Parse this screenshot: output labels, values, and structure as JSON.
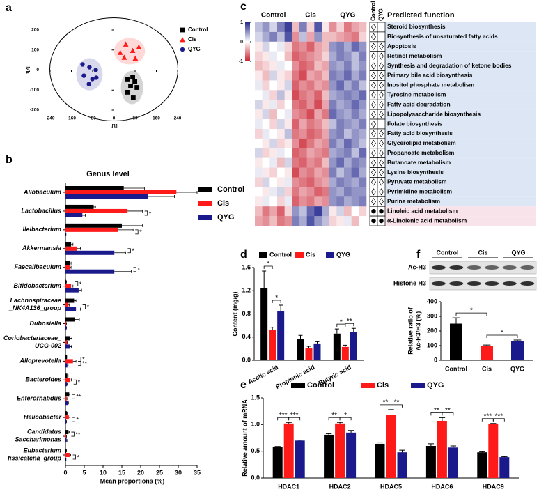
{
  "chart_data": [
    {
      "type": "scatter",
      "label": "a",
      "xlabel": "t[1]",
      "ylabel": "t[2]",
      "xlim": [
        -240,
        240
      ],
      "xticks": [
        -240,
        -160,
        -80,
        0,
        80,
        160,
        240
      ],
      "ylim": [
        -200,
        200
      ],
      "yticks": [
        -200,
        -100,
        0,
        100,
        200
      ],
      "series": [
        {
          "name": "Control",
          "color": "#000000",
          "marker": "square",
          "x": [
            52,
            71,
            79,
            63,
            50,
            73,
            87
          ],
          "y": [
            -45,
            -35,
            -56,
            -80,
            -111,
            -139,
            -87
          ]
        },
        {
          "name": "Cis",
          "color": "#ff1a1a",
          "marker": "triangle",
          "x": [
            24,
            45,
            71,
            94,
            39,
            81
          ],
          "y": [
            87,
            129,
            97,
            115,
            63,
            59
          ]
        },
        {
          "name": "QYG",
          "color": "#1a1a8c",
          "marker": "circle",
          "x": [
            -118,
            -92,
            -68,
            -113,
            -81,
            -94,
            -66
          ],
          "y": [
            28,
            14,
            0,
            -28,
            -45,
            -70,
            -38
          ]
        }
      ]
    },
    {
      "type": "hbar",
      "label": "b",
      "title": "Genus level",
      "xlabel": "Mean proportions (%)",
      "categories": [
        "Allobaculum",
        "Lactobacillus",
        "Ileibacterium",
        "Akkermansia",
        "Faecalibaculum",
        "Bifidobacterium",
        "Lachnospiraceae\n_NK4A136_group",
        "Dubosiella",
        "Coriobacteriaceae_\nUCG-002",
        "Alloprevotella",
        "Bacteroides",
        "Enterorhabdus",
        "Helicobacter",
        "Candidatus\n_Saccharimonas",
        "Eubacterium\n_fissicatena_group"
      ],
      "xlim": [
        0,
        35
      ],
      "xticks": [
        0,
        5,
        10,
        15,
        20,
        25,
        30,
        35
      ],
      "series": [
        {
          "name": "Control",
          "color": "#000000",
          "values": [
            15.5,
            7.5,
            15,
            1.5,
            1.2,
            0.2,
            2.3,
            2.5,
            1.3,
            0.4,
            0.5,
            1,
            0.4,
            0.8,
            0.2
          ],
          "errors": [
            5.5,
            0.5,
            5.5,
            0.5,
            0.3,
            0.1,
            0.5,
            1.2,
            0.4,
            0.2,
            0.2,
            0.2,
            0.1,
            0.2,
            0.1
          ]
        },
        {
          "name": "Cis",
          "color": "#ff1a1a",
          "values": [
            29.5,
            16.5,
            14,
            3,
            1.2,
            1.5,
            0.8,
            0.2,
            0.4,
            2,
            1.3,
            0.3,
            0.9,
            0.2,
            1.1
          ],
          "errors": [
            5.5,
            4,
            4,
            1,
            0.3,
            0.5,
            0.2,
            0.1,
            0.1,
            0.8,
            0.3,
            0.1,
            0.3,
            0.1,
            0.3
          ]
        },
        {
          "name": "QYG",
          "color": "#1a1a8c",
          "values": [
            22,
            4.5,
            0.1,
            13,
            13,
            3.5,
            2.8,
            0.2,
            1.3,
            0.5,
            0.4,
            0.7,
            0.2,
            0.3,
            0.1
          ],
          "errors": [
            7,
            0.8,
            0.05,
            3,
            4.5,
            0.8,
            1.2,
            0.1,
            0.3,
            0.2,
            0.1,
            0.1,
            0.1,
            0.1,
            0.05
          ]
        }
      ],
      "significance": [
        {
          "category": 1,
          "pair": [
            1,
            2
          ],
          "label": "*"
        },
        {
          "category": 2,
          "pair": [
            1,
            2
          ],
          "label": "*"
        },
        {
          "category": 3,
          "pair": [
            1,
            2
          ],
          "label": "*"
        },
        {
          "category": 4,
          "pair": [
            1,
            2
          ],
          "label": "*"
        },
        {
          "category": 5,
          "pair": [
            0,
            1
          ],
          "label": "*"
        },
        {
          "category": 6,
          "pair": [
            1,
            2
          ],
          "label": "*"
        },
        {
          "category": 9,
          "pair": [
            0,
            1
          ],
          "label": "*"
        },
        {
          "category": 9,
          "pair": [
            1,
            2
          ],
          "label": "**"
        },
        {
          "category": 10,
          "pair": [
            1,
            2
          ],
          "label": "*"
        },
        {
          "category": 11,
          "pair": [
            0,
            1
          ],
          "label": "**"
        },
        {
          "category": 12,
          "pair": [
            1,
            2
          ],
          "label": "*"
        },
        {
          "category": 13,
          "pair": [
            0,
            1
          ],
          "label": "**"
        },
        {
          "category": 14,
          "pair": [
            1,
            2
          ],
          "label": "*"
        }
      ]
    },
    {
      "type": "heatmap",
      "label": "c",
      "groups": [
        "Control",
        "Cis",
        "QYG"
      ],
      "header": "Predicted function",
      "rows": [
        "Steroid biosynthesis",
        "Biosynthesis of unsaturated fatty acids",
        "Apoptosis",
        "Retinol metabolism",
        "Synthesis and degradation of ketone bodies",
        "Primary bile acid biosynthesis",
        "Inositol phosphate metabolism",
        "Tyrosine metabolism",
        "Fatty acid degradation",
        "Lipopolysaccharide biosynthesis",
        "Folate biosynthesis",
        "Fatty acid biosynthesis",
        "Glycerolipid metabolism",
        "Propanoate metabolism",
        "Butanoate metabolism",
        "Lysine biosynthesis",
        "Pyruvate metabolism",
        "Pyrimidine metabolism",
        "Purine metabolism",
        "Linoleic acid metabolism",
        "α-Linolenic acid metabolism"
      ],
      "values": [
        [
          -0.3,
          -0.5,
          -0.2,
          -0.6,
          -0.9,
          0.3,
          -0.6,
          0.2,
          -0.8,
          0.1,
          0.5,
          0.2,
          0.6,
          0.4,
          0.3
        ],
        [
          -0.2,
          -0.4,
          -0.6,
          -0.3,
          -0.8,
          0.5,
          -0.3,
          0.4,
          -0.5,
          0.3,
          0.3,
          0.4,
          0.5,
          0.6,
          0.2
        ],
        [
          0.1,
          -0.2,
          0.0,
          -0.1,
          0.2,
          0.6,
          0.5,
          0.7,
          0.4,
          0.3,
          -0.5,
          -0.6,
          -0.4,
          -0.7,
          -0.5
        ],
        [
          0.2,
          0.1,
          -0.1,
          0.0,
          0.3,
          0.7,
          0.6,
          0.5,
          0.4,
          0.2,
          -0.4,
          -0.6,
          -0.5,
          -0.3,
          -0.6
        ],
        [
          0.3,
          0.2,
          0.1,
          -0.1,
          0.0,
          0.5,
          0.7,
          0.6,
          0.3,
          0.4,
          -0.5,
          -0.4,
          -0.6,
          -0.3,
          -0.5
        ],
        [
          0.1,
          0.3,
          -0.2,
          0.1,
          0.2,
          0.6,
          0.8,
          0.4,
          0.5,
          0.3,
          -0.6,
          -0.5,
          -0.7,
          -0.4,
          -0.6
        ],
        [
          -0.1,
          0.2,
          0.0,
          0.1,
          -0.2,
          0.7,
          0.5,
          0.6,
          0.4,
          0.5,
          -0.5,
          -0.7,
          -0.4,
          -0.6,
          -0.3
        ],
        [
          0.0,
          -0.1,
          0.2,
          -0.3,
          0.1,
          0.8,
          0.6,
          0.5,
          0.7,
          0.3,
          -0.4,
          -0.5,
          -0.6,
          -0.5,
          -0.7
        ],
        [
          -0.2,
          0.1,
          -0.1,
          0.2,
          0.0,
          0.6,
          0.7,
          0.5,
          0.8,
          0.4,
          -0.6,
          -0.4,
          -0.5,
          -0.7,
          -0.5
        ],
        [
          0.1,
          -0.2,
          0.3,
          0.0,
          -0.1,
          0.5,
          0.6,
          0.8,
          0.4,
          0.6,
          -0.7,
          -0.5,
          -0.4,
          -0.6,
          -0.4
        ],
        [
          -0.1,
          0.0,
          0.2,
          -0.2,
          0.1,
          0.7,
          0.4,
          0.6,
          0.5,
          0.3,
          -0.3,
          -0.6,
          -0.5,
          -0.4,
          -0.6
        ],
        [
          0.2,
          -0.1,
          0.0,
          0.1,
          -0.3,
          0.6,
          0.5,
          0.7,
          0.6,
          0.4,
          -0.5,
          -0.6,
          -0.3,
          -0.5,
          -0.4
        ],
        [
          0.0,
          0.1,
          -0.2,
          0.2,
          0.1,
          0.5,
          0.8,
          0.6,
          0.4,
          0.5,
          -0.6,
          -0.4,
          -0.7,
          -0.5,
          -0.3
        ],
        [
          -0.2,
          0.2,
          0.1,
          -0.1,
          0.0,
          0.7,
          0.6,
          0.4,
          0.5,
          0.6,
          -0.4,
          -0.5,
          -0.6,
          -0.3,
          -0.7
        ],
        [
          0.1,
          0.0,
          -0.1,
          0.3,
          -0.2,
          0.6,
          0.7,
          0.5,
          0.6,
          0.3,
          -0.5,
          -0.7,
          -0.4,
          -0.6,
          -0.5
        ],
        [
          -0.1,
          0.1,
          0.2,
          0.0,
          0.1,
          0.8,
          0.5,
          0.6,
          0.4,
          0.5,
          -0.6,
          -0.3,
          -0.5,
          -0.7,
          -0.4
        ],
        [
          0.2,
          -0.2,
          0.0,
          0.1,
          -0.1,
          0.5,
          0.6,
          0.7,
          0.5,
          0.4,
          -0.4,
          -0.6,
          -0.5,
          -0.4,
          -0.6
        ],
        [
          0.0,
          0.1,
          -0.1,
          -0.2,
          0.2,
          0.6,
          0.4,
          0.5,
          0.7,
          0.6,
          -0.5,
          -0.4,
          -0.6,
          -0.5,
          -0.5
        ],
        [
          0.1,
          -0.1,
          0.0,
          0.2,
          -0.1,
          0.7,
          0.5,
          0.6,
          0.4,
          0.5,
          -0.5,
          -0.6,
          -0.4,
          -0.5,
          -0.6
        ],
        [
          0.3,
          0.6,
          0.4,
          0.7,
          0.2,
          -0.5,
          -0.3,
          -0.7,
          -0.9,
          -0.4,
          0.1,
          -0.2,
          0.3,
          0.0,
          0.2
        ],
        [
          0.4,
          0.5,
          0.3,
          0.6,
          0.5,
          -0.6,
          -0.4,
          -0.8,
          -0.5,
          -0.3,
          0.2,
          0.1,
          -0.1,
          0.3,
          0.0
        ]
      ],
      "zlim": [
        -1,
        1
      ],
      "zticks": [
        1,
        0,
        -1
      ],
      "colorscale": [
        "#262a8e",
        "#ffffff",
        "#c81f2e"
      ],
      "marker_columns": [
        "Control",
        "QYG"
      ],
      "markers": [
        [
          "diamond",
          null
        ],
        [
          "diamond",
          null
        ],
        [
          "diamond",
          "diamond"
        ],
        [
          "diamond",
          "diamond"
        ],
        [
          "diamond",
          "diamond"
        ],
        [
          "diamond",
          "diamond"
        ],
        [
          "diamond",
          "diamond"
        ],
        [
          "diamond",
          "diamond"
        ],
        [
          "diamond",
          "diamond"
        ],
        [
          "diamond",
          "diamond"
        ],
        [
          "diamond",
          null
        ],
        [
          "diamond",
          "diamond"
        ],
        [
          "diamond",
          "diamond"
        ],
        [
          "diamond",
          "diamond"
        ],
        [
          "diamond",
          "diamond"
        ],
        [
          "diamond",
          "diamond"
        ],
        [
          "diamond",
          "diamond"
        ],
        [
          "diamond",
          "diamond"
        ],
        [
          "diamond",
          "diamond"
        ],
        [
          "circle",
          "circle"
        ],
        [
          "circle",
          "circle"
        ]
      ],
      "row_colors": [
        "#dce6f4",
        "#dce6f4",
        "#dce6f4",
        "#dce6f4",
        "#dce6f4",
        "#dce6f4",
        "#dce6f4",
        "#dce6f4",
        "#dce6f4",
        "#dce6f4",
        "#dce6f4",
        "#dce6f4",
        "#dce6f4",
        "#dce6f4",
        "#dce6f4",
        "#dce6f4",
        "#dce6f4",
        "#dce6f4",
        "#dce6f4",
        "#f9e3ea",
        "#f9e3ea"
      ]
    },
    {
      "type": "bar",
      "label": "d",
      "ylabel": "Content (mg/g)",
      "categories": [
        "Acetic acid",
        "Propionic acid",
        "Butyric acid"
      ],
      "ylim": [
        0,
        1.6
      ],
      "yticks": [
        {
          "value": 0,
          "label": "0.0"
        },
        0.4,
        0.8,
        1.2,
        1.6
      ],
      "series": [
        {
          "name": "Control",
          "color": "#000000",
          "values": [
            1.24,
            0.37,
            0.46
          ],
          "errors": [
            0.3,
            0.06,
            0.08
          ]
        },
        {
          "name": "Cis",
          "color": "#ff1a1a",
          "values": [
            0.52,
            0.21,
            0.23
          ],
          "errors": [
            0.05,
            0.03,
            0.03
          ]
        },
        {
          "name": "QYG",
          "color": "#1a1a8c",
          "values": [
            0.85,
            0.29,
            0.49
          ],
          "errors": [
            0.1,
            0.03,
            0.06
          ]
        }
      ],
      "significance": [
        {
          "category": 0,
          "pair": [
            0,
            1
          ],
          "label": "*"
        },
        {
          "category": 0,
          "pair": [
            1,
            2
          ],
          "label": "*"
        },
        {
          "category": 2,
          "pair": [
            0,
            1
          ],
          "label": "*"
        },
        {
          "category": 2,
          "pair": [
            1,
            2
          ],
          "label": "**"
        }
      ]
    },
    {
      "type": "bar",
      "label": "e",
      "ylabel": "Relative amount of mRNA",
      "categories": [
        "HDAC1",
        "HDAC2",
        "HDAC5",
        "HDAC6",
        "HDAC9"
      ],
      "ylim": [
        0,
        1.5
      ],
      "yticks": [
        {
          "value": 0,
          "label": "0.0"
        },
        0.5,
        {
          "value": 1,
          "label": "1.0"
        },
        1.5
      ],
      "series": [
        {
          "name": "Control",
          "color": "#000000",
          "values": [
            0.58,
            0.81,
            0.64,
            0.6,
            0.48
          ],
          "errors": [
            0.01,
            0.02,
            0.03,
            0.04,
            0.01
          ]
        },
        {
          "name": "Cis",
          "color": "#ff1a1a",
          "values": [
            1.02,
            1.02,
            1.18,
            1.07,
            1.01
          ],
          "errors": [
            0.02,
            0.02,
            0.1,
            0.06,
            0.01
          ]
        },
        {
          "name": "QYG",
          "color": "#1a1a8c",
          "values": [
            0.7,
            0.85,
            0.48,
            0.57,
            0.39
          ],
          "errors": [
            0.01,
            0.04,
            0.04,
            0.03,
            0.01
          ]
        }
      ],
      "significance": [
        {
          "category": 0,
          "pair": [
            0,
            1
          ],
          "label": "***"
        },
        {
          "category": 0,
          "pair": [
            1,
            2
          ],
          "label": "***"
        },
        {
          "category": 1,
          "pair": [
            0,
            1
          ],
          "label": "**"
        },
        {
          "category": 1,
          "pair": [
            1,
            2
          ],
          "label": "*"
        },
        {
          "category": 2,
          "pair": [
            0,
            1
          ],
          "label": "**"
        },
        {
          "category": 2,
          "pair": [
            1,
            2
          ],
          "label": "**"
        },
        {
          "category": 3,
          "pair": [
            0,
            1
          ],
          "label": "**"
        },
        {
          "category": 3,
          "pair": [
            1,
            2
          ],
          "label": "**"
        },
        {
          "category": 4,
          "pair": [
            0,
            1
          ],
          "label": "***"
        },
        {
          "category": 4,
          "pair": [
            1,
            2
          ],
          "label": "***"
        }
      ]
    },
    {
      "type": "bar",
      "label": "f",
      "ylabel": "Relative ratio of\nAc-H3/H3 (%)",
      "blot": {
        "lanes": [
          "Control",
          "Cis",
          "QYG"
        ],
        "rows": [
          "Ac-H3",
          "Histone H3"
        ]
      },
      "categories": [
        "Control",
        "Cis",
        "QYG"
      ],
      "values": [
        250,
        97,
        130
      ],
      "errors": [
        40,
        7,
        8
      ],
      "colors": [
        "#000000",
        "#ff1a1a",
        "#1a1a8c"
      ],
      "ylim": [
        0,
        400
      ],
      "yticks": [
        0,
        100,
        200,
        300,
        400
      ],
      "significance": [
        {
          "pair": [
            0,
            1
          ],
          "label": "*"
        },
        {
          "pair": [
            1,
            2
          ],
          "label": "*"
        }
      ]
    }
  ]
}
